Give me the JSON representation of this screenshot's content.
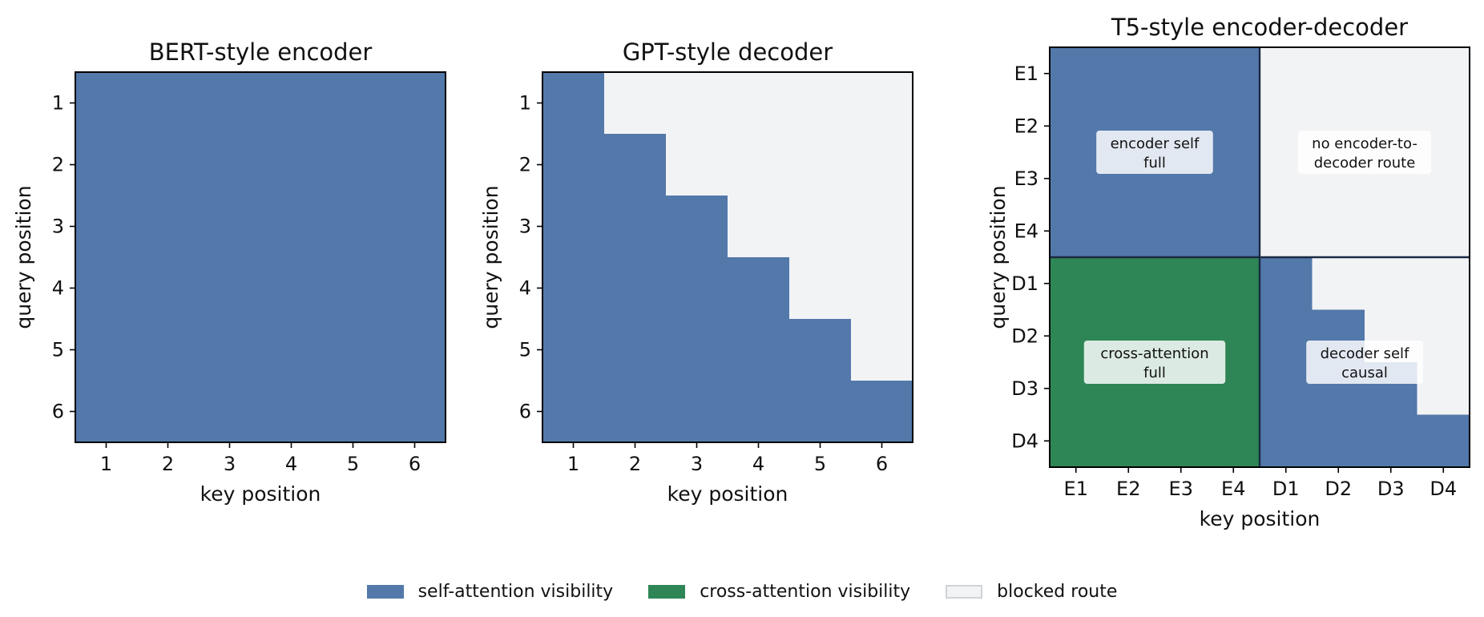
{
  "colors": {
    "self_attention": "#5378aa",
    "cross_attention": "#2e8555",
    "blocked": "#f2f3f5",
    "frame": "#1b2a44"
  },
  "legend": [
    {
      "label": "self-attention visibility",
      "color": "#5378aa"
    },
    {
      "label": "cross-attention visibility",
      "color": "#2e8555"
    },
    {
      "label": "blocked route",
      "color": "#f2f3f5"
    }
  ],
  "chart_data": [
    {
      "type": "heatmap",
      "title": "BERT-style encoder",
      "xlabel": "key position",
      "ylabel": "query position",
      "x_categories": [
        "1",
        "2",
        "3",
        "4",
        "5",
        "6"
      ],
      "y_categories": [
        "1",
        "2",
        "3",
        "4",
        "5",
        "6"
      ],
      "legend": "bottom-center",
      "grid": false,
      "cells": [
        [
          "self",
          "self",
          "self",
          "self",
          "self",
          "self"
        ],
        [
          "self",
          "self",
          "self",
          "self",
          "self",
          "self"
        ],
        [
          "self",
          "self",
          "self",
          "self",
          "self",
          "self"
        ],
        [
          "self",
          "self",
          "self",
          "self",
          "self",
          "self"
        ],
        [
          "self",
          "self",
          "self",
          "self",
          "self",
          "self"
        ],
        [
          "self",
          "self",
          "self",
          "self",
          "self",
          "self"
        ]
      ],
      "annotations": []
    },
    {
      "type": "heatmap",
      "title": "GPT-style decoder",
      "xlabel": "key position",
      "ylabel": "query position",
      "x_categories": [
        "1",
        "2",
        "3",
        "4",
        "5",
        "6"
      ],
      "y_categories": [
        "1",
        "2",
        "3",
        "4",
        "5",
        "6"
      ],
      "legend": "bottom-center",
      "grid": false,
      "cells": [
        [
          "self",
          "blocked",
          "blocked",
          "blocked",
          "blocked",
          "blocked"
        ],
        [
          "self",
          "self",
          "blocked",
          "blocked",
          "blocked",
          "blocked"
        ],
        [
          "self",
          "self",
          "self",
          "blocked",
          "blocked",
          "blocked"
        ],
        [
          "self",
          "self",
          "self",
          "self",
          "blocked",
          "blocked"
        ],
        [
          "self",
          "self",
          "self",
          "self",
          "self",
          "blocked"
        ],
        [
          "self",
          "self",
          "self",
          "self",
          "self",
          "self"
        ]
      ],
      "annotations": []
    },
    {
      "type": "heatmap",
      "title": "T5-style encoder-decoder",
      "xlabel": "key position",
      "ylabel": "query position",
      "x_categories": [
        "E1",
        "E2",
        "E3",
        "E4",
        "D1",
        "D2",
        "D3",
        "D4"
      ],
      "y_categories": [
        "E1",
        "E2",
        "E3",
        "E4",
        "D1",
        "D2",
        "D3",
        "D4"
      ],
      "legend": "bottom-center",
      "grid": false,
      "cells": [
        [
          "self",
          "self",
          "self",
          "self",
          "blocked",
          "blocked",
          "blocked",
          "blocked"
        ],
        [
          "self",
          "self",
          "self",
          "self",
          "blocked",
          "blocked",
          "blocked",
          "blocked"
        ],
        [
          "self",
          "self",
          "self",
          "self",
          "blocked",
          "blocked",
          "blocked",
          "blocked"
        ],
        [
          "self",
          "self",
          "self",
          "self",
          "blocked",
          "blocked",
          "blocked",
          "blocked"
        ],
        [
          "cross",
          "cross",
          "cross",
          "cross",
          "self",
          "blocked",
          "blocked",
          "blocked"
        ],
        [
          "cross",
          "cross",
          "cross",
          "cross",
          "self",
          "self",
          "blocked",
          "blocked"
        ],
        [
          "cross",
          "cross",
          "cross",
          "cross",
          "self",
          "self",
          "self",
          "blocked"
        ],
        [
          "cross",
          "cross",
          "cross",
          "cross",
          "self",
          "self",
          "self",
          "self"
        ]
      ],
      "quadrant_dividers": [
        4
      ],
      "annotations": [
        {
          "text": [
            "encoder self",
            "full"
          ],
          "quadrant": "top-left"
        },
        {
          "text": [
            "no encoder-to-",
            "decoder route"
          ],
          "quadrant": "top-right"
        },
        {
          "text": [
            "cross-attention",
            "full"
          ],
          "quadrant": "bottom-left"
        },
        {
          "text": [
            "decoder self",
            "causal"
          ],
          "quadrant": "bottom-right"
        }
      ]
    }
  ]
}
